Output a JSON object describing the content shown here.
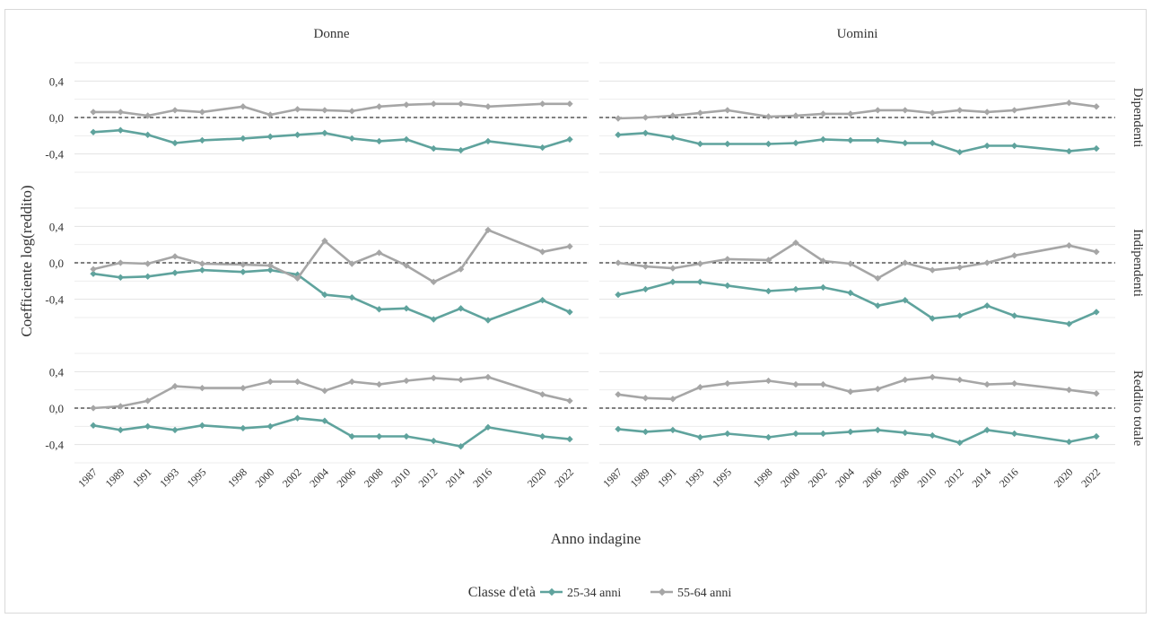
{
  "chart_data": {
    "type": "line",
    "ylabel": "Coefficiente log(reddito)",
    "xlabel": "Anno indagine",
    "x": [
      1987,
      1989,
      1991,
      1993,
      1995,
      1998,
      2000,
      2002,
      2004,
      2006,
      2008,
      2010,
      2012,
      2014,
      2016,
      2020,
      2022
    ],
    "xtick_labels": [
      "1987",
      "1989",
      "1991",
      "1993",
      "1995",
      "1998",
      "2000",
      "2002",
      "2004",
      "2006",
      "2008",
      "2010",
      "2012",
      "2014",
      "2016",
      "2020",
      "2022"
    ],
    "yticks": [
      -0.4,
      0.0,
      0.4
    ],
    "ytick_labels": [
      "-0,4",
      "0,0",
      "0,4"
    ],
    "ylim": [
      -0.6,
      0.6
    ],
    "reference_line": 0,
    "columns": [
      "Donne",
      "Uomini"
    ],
    "rows": [
      "Dipendenti",
      "Indipendenti",
      "Reddito totale"
    ],
    "legend": {
      "title": "Classe d'età",
      "position": "bottom",
      "entries": [
        {
          "name": "25-34 anni",
          "color": "#5fa39d"
        },
        {
          "name": "55-64 anni",
          "color": "#a6a6a6"
        }
      ]
    },
    "panels": [
      {
        "column": "Donne",
        "row": "Dipendenti",
        "series": [
          {
            "name": "25-34 anni",
            "values": [
              -0.16,
              -0.14,
              -0.19,
              -0.28,
              -0.25,
              -0.23,
              -0.21,
              -0.19,
              -0.17,
              -0.23,
              -0.26,
              -0.24,
              -0.34,
              -0.36,
              -0.26,
              -0.33,
              -0.24
            ]
          },
          {
            "name": "55-64 anni",
            "values": [
              0.06,
              0.06,
              0.02,
              0.08,
              0.06,
              0.12,
              0.03,
              0.09,
              0.08,
              0.07,
              0.12,
              0.14,
              0.15,
              0.15,
              0.12,
              0.15,
              0.15
            ]
          }
        ]
      },
      {
        "column": "Uomini",
        "row": "Dipendenti",
        "series": [
          {
            "name": "25-34 anni",
            "values": [
              -0.19,
              -0.17,
              -0.22,
              -0.29,
              -0.29,
              -0.29,
              -0.28,
              -0.24,
              -0.25,
              -0.25,
              -0.28,
              -0.28,
              -0.38,
              -0.31,
              -0.31,
              -0.37,
              -0.34
            ]
          },
          {
            "name": "55-64 anni",
            "values": [
              -0.01,
              0.0,
              0.02,
              0.05,
              0.08,
              0.01,
              0.02,
              0.04,
              0.04,
              0.08,
              0.08,
              0.05,
              0.08,
              0.06,
              0.08,
              0.16,
              0.12
            ]
          }
        ]
      },
      {
        "column": "Donne",
        "row": "Indipendenti",
        "series": [
          {
            "name": "25-34 anni",
            "values": [
              -0.12,
              -0.16,
              -0.15,
              -0.11,
              -0.08,
              -0.1,
              -0.08,
              -0.13,
              -0.35,
              -0.38,
              -0.51,
              -0.5,
              -0.62,
              -0.5,
              -0.63,
              -0.41,
              -0.54
            ]
          },
          {
            "name": "55-64 anni",
            "values": [
              -0.07,
              0.0,
              -0.01,
              0.07,
              -0.01,
              -0.02,
              -0.03,
              -0.17,
              0.24,
              -0.01,
              0.11,
              -0.03,
              -0.21,
              -0.07,
              0.36,
              0.12,
              0.18
            ]
          }
        ]
      },
      {
        "column": "Uomini",
        "row": "Indipendenti",
        "series": [
          {
            "name": "25-34 anni",
            "values": [
              -0.35,
              -0.29,
              -0.21,
              -0.21,
              -0.25,
              -0.31,
              -0.29,
              -0.27,
              -0.33,
              -0.47,
              -0.41,
              -0.61,
              -0.58,
              -0.47,
              -0.58,
              -0.67,
              -0.54
            ]
          },
          {
            "name": "55-64 anni",
            "values": [
              0.0,
              -0.04,
              -0.06,
              -0.01,
              0.04,
              0.03,
              0.22,
              0.02,
              -0.01,
              -0.17,
              0.0,
              -0.08,
              -0.05,
              0.0,
              0.08,
              0.19,
              0.12
            ]
          }
        ]
      },
      {
        "column": "Donne",
        "row": "Reddito totale",
        "series": [
          {
            "name": "25-34 anni",
            "values": [
              -0.19,
              -0.24,
              -0.2,
              -0.24,
              -0.19,
              -0.22,
              -0.2,
              -0.11,
              -0.14,
              -0.31,
              -0.31,
              -0.31,
              -0.36,
              -0.42,
              -0.21,
              -0.31,
              -0.34
            ]
          },
          {
            "name": "55-64 anni",
            "values": [
              0.0,
              0.02,
              0.08,
              0.24,
              0.22,
              0.22,
              0.29,
              0.29,
              0.19,
              0.29,
              0.26,
              0.3,
              0.33,
              0.31,
              0.34,
              0.15,
              0.08
            ]
          }
        ]
      },
      {
        "column": "Uomini",
        "row": "Reddito totale",
        "series": [
          {
            "name": "25-34 anni",
            "values": [
              -0.23,
              -0.26,
              -0.24,
              -0.32,
              -0.28,
              -0.32,
              -0.28,
              -0.28,
              -0.26,
              -0.24,
              -0.27,
              -0.3,
              -0.38,
              -0.24,
              -0.28,
              -0.37,
              -0.31
            ]
          },
          {
            "name": "55-64 anni",
            "values": [
              0.15,
              0.11,
              0.1,
              0.23,
              0.27,
              0.3,
              0.26,
              0.26,
              0.18,
              0.21,
              0.31,
              0.34,
              0.31,
              0.26,
              0.27,
              0.2,
              0.16
            ]
          }
        ]
      }
    ]
  }
}
